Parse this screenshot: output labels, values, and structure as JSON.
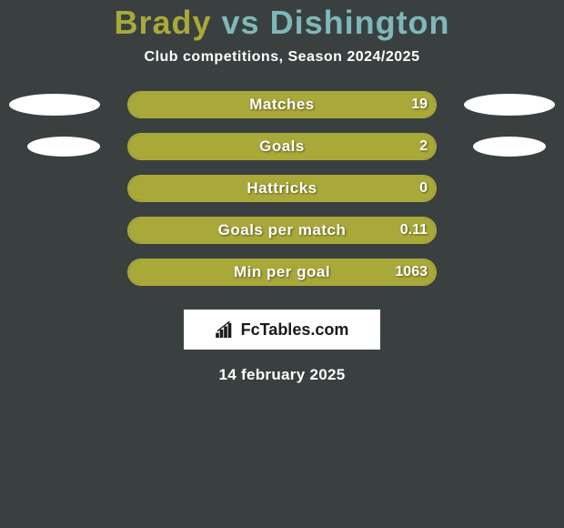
{
  "title": {
    "player1": "Brady",
    "vs": "vs",
    "player2": "Dishington"
  },
  "subtitle": "Club competitions, Season 2024/2025",
  "colors": {
    "bar_border": "#a9a93a",
    "fill_left": "#a9a93a",
    "fill_right": "#7fb8b8",
    "background": "#3a4040",
    "text": "#ffffff"
  },
  "layout": {
    "track_width": 340,
    "track_height": 30,
    "border_radius": 15
  },
  "stats": [
    {
      "label": "Matches",
      "value_right": "19",
      "fill_left_pct": 100,
      "fill_right_pct": 0,
      "show_ellipses": "large"
    },
    {
      "label": "Goals",
      "value_right": "2",
      "fill_left_pct": 100,
      "fill_right_pct": 0,
      "show_ellipses": "small"
    },
    {
      "label": "Hattricks",
      "value_right": "0",
      "fill_left_pct": 100,
      "fill_right_pct": 0,
      "show_ellipses": "none"
    },
    {
      "label": "Goals per match",
      "value_right": "0.11",
      "fill_left_pct": 100,
      "fill_right_pct": 0,
      "show_ellipses": "none"
    },
    {
      "label": "Min per goal",
      "value_right": "1063",
      "fill_left_pct": 100,
      "fill_right_pct": 0,
      "show_ellipses": "none"
    }
  ],
  "logo": {
    "text": "FcTables.com",
    "icon": "bars-icon"
  },
  "date": "14 february 2025"
}
